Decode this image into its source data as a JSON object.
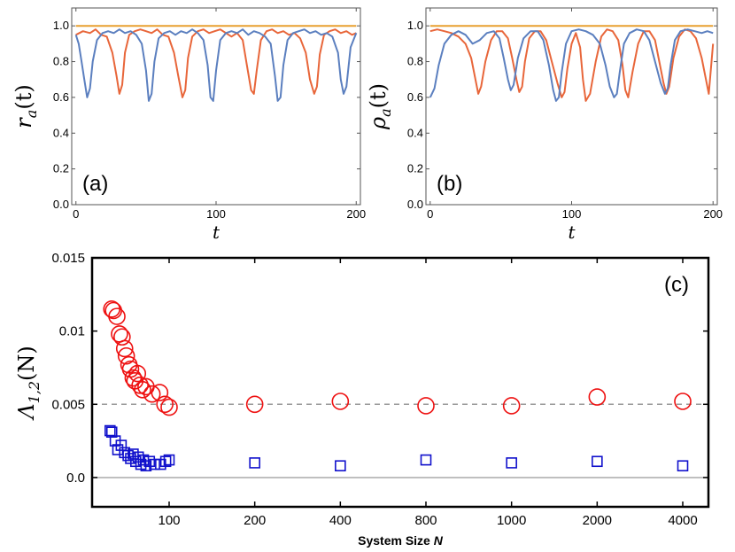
{
  "chart_data": [
    {
      "type": "line",
      "panel_label": "(a)",
      "xlabel": "t",
      "ylabel": "r_a(t)",
      "ylabel_main": "r",
      "ylabel_sub": "a",
      "ylabel_arg": "(t)",
      "xlim": [
        -3,
        203
      ],
      "ylim": [
        0,
        1.1
      ],
      "xticks": [
        "0",
        "100",
        "200"
      ],
      "xtick_values": [
        0,
        100,
        200
      ],
      "yticks": [
        "0.0",
        "0.2",
        "0.4",
        "0.6",
        "0.8",
        "1.0"
      ],
      "ytick_values": [
        0,
        0.2,
        0.4,
        0.6,
        0.8,
        1.0
      ],
      "series": [
        {
          "name": "constant",
          "color": "#e8a030",
          "x": [
            0,
            200
          ],
          "values": [
            1.0,
            1.0
          ]
        },
        {
          "name": "orange",
          "color": "#e8663a",
          "x": [
            0,
            5,
            10,
            14,
            18,
            22,
            26,
            29,
            31,
            33,
            35,
            38,
            42,
            46,
            50,
            54,
            58,
            62,
            66,
            70,
            73,
            76,
            78,
            80,
            83,
            87,
            91,
            95,
            99,
            103,
            107,
            111,
            115,
            119,
            122,
            125,
            127,
            129,
            132,
            136,
            140,
            144,
            148,
            152,
            156,
            160,
            164,
            167,
            170,
            172,
            174,
            177,
            181,
            185,
            189,
            193,
            197,
            200
          ],
          "values": [
            0.95,
            0.97,
            0.96,
            0.98,
            0.95,
            0.94,
            0.85,
            0.72,
            0.62,
            0.67,
            0.85,
            0.95,
            0.97,
            0.98,
            0.97,
            0.96,
            0.98,
            0.95,
            0.94,
            0.85,
            0.72,
            0.6,
            0.64,
            0.82,
            0.94,
            0.97,
            0.98,
            0.96,
            0.97,
            0.98,
            0.96,
            0.94,
            0.96,
            0.92,
            0.78,
            0.64,
            0.62,
            0.75,
            0.92,
            0.97,
            0.98,
            0.96,
            0.97,
            0.95,
            0.96,
            0.93,
            0.85,
            0.7,
            0.62,
            0.66,
            0.84,
            0.95,
            0.97,
            0.98,
            0.96,
            0.97,
            0.95,
            0.96
          ]
        },
        {
          "name": "blue",
          "color": "#5b7fbf",
          "x": [
            0,
            2,
            4,
            6,
            8,
            10,
            12,
            15,
            19,
            23,
            27,
            31,
            35,
            39,
            43,
            47,
            50,
            52,
            54,
            56,
            59,
            63,
            67,
            71,
            75,
            79,
            83,
            87,
            91,
            94,
            96,
            98,
            100,
            103,
            107,
            111,
            115,
            119,
            123,
            127,
            131,
            135,
            139,
            142,
            144,
            146,
            148,
            151,
            155,
            159,
            163,
            167,
            171,
            175,
            179,
            183,
            187,
            189,
            191,
            193,
            196,
            200
          ],
          "values": [
            0.95,
            0.9,
            0.8,
            0.7,
            0.6,
            0.65,
            0.8,
            0.92,
            0.96,
            0.97,
            0.96,
            0.98,
            0.96,
            0.97,
            0.95,
            0.9,
            0.75,
            0.58,
            0.62,
            0.8,
            0.93,
            0.96,
            0.97,
            0.95,
            0.97,
            0.96,
            0.98,
            0.96,
            0.92,
            0.78,
            0.6,
            0.58,
            0.75,
            0.92,
            0.96,
            0.97,
            0.96,
            0.98,
            0.95,
            0.97,
            0.96,
            0.94,
            0.9,
            0.72,
            0.58,
            0.6,
            0.78,
            0.92,
            0.96,
            0.97,
            0.98,
            0.96,
            0.97,
            0.95,
            0.96,
            0.94,
            0.85,
            0.7,
            0.62,
            0.66,
            0.88,
            0.96
          ]
        }
      ]
    },
    {
      "type": "line",
      "panel_label": "(b)",
      "xlabel": "t",
      "ylabel": "ρ_a(t)",
      "ylabel_main": "ρ",
      "ylabel_sub": "a",
      "ylabel_arg": "(t)",
      "xlim": [
        -3,
        203
      ],
      "ylim": [
        0,
        1.1
      ],
      "xticks": [
        "0",
        "100",
        "200"
      ],
      "xtick_values": [
        0,
        100,
        200
      ],
      "yticks": [
        "0.0",
        "0.2",
        "0.4",
        "0.6",
        "0.8",
        "1.0"
      ],
      "ytick_values": [
        0,
        0.2,
        0.4,
        0.6,
        0.8,
        1.0
      ],
      "series": [
        {
          "name": "constant",
          "color": "#e8a030",
          "x": [
            0,
            200
          ],
          "values": [
            1.0,
            1.0
          ]
        },
        {
          "name": "orange",
          "color": "#e8663a",
          "x": [
            0,
            5,
            10,
            15,
            20,
            25,
            29,
            32,
            34,
            36,
            39,
            43,
            47,
            51,
            55,
            58,
            61,
            63,
            65,
            67,
            70,
            74,
            78,
            82,
            86,
            90,
            93,
            95,
            97,
            100,
            103,
            106,
            108,
            110,
            113,
            117,
            121,
            125,
            129,
            133,
            136,
            138,
            140,
            143,
            147,
            151,
            155,
            159,
            162,
            165,
            167,
            169,
            172,
            176,
            180,
            184,
            188,
            192,
            195,
            197,
            200
          ],
          "values": [
            0.97,
            0.98,
            0.97,
            0.96,
            0.94,
            0.9,
            0.82,
            0.7,
            0.62,
            0.66,
            0.8,
            0.92,
            0.97,
            0.97,
            0.93,
            0.82,
            0.7,
            0.63,
            0.66,
            0.8,
            0.93,
            0.97,
            0.97,
            0.92,
            0.8,
            0.68,
            0.6,
            0.63,
            0.76,
            0.9,
            0.96,
            0.88,
            0.7,
            0.58,
            0.62,
            0.8,
            0.94,
            0.98,
            0.97,
            0.92,
            0.78,
            0.64,
            0.6,
            0.74,
            0.9,
            0.97,
            0.97,
            0.92,
            0.8,
            0.68,
            0.62,
            0.66,
            0.82,
            0.94,
            0.98,
            0.97,
            0.93,
            0.82,
            0.7,
            0.62,
            0.9
          ]
        },
        {
          "name": "blue",
          "color": "#5b7fbf",
          "x": [
            0,
            3,
            6,
            10,
            15,
            20,
            25,
            30,
            35,
            40,
            45,
            49,
            52,
            55,
            57,
            59,
            62,
            66,
            71,
            76,
            80,
            84,
            87,
            89,
            91,
            93,
            96,
            100,
            105,
            110,
            115,
            120,
            124,
            127,
            130,
            132,
            134,
            137,
            141,
            146,
            151,
            155,
            159,
            163,
            166,
            168,
            170,
            173,
            177,
            182,
            187,
            192,
            196,
            200
          ],
          "values": [
            0.6,
            0.65,
            0.78,
            0.9,
            0.95,
            0.97,
            0.95,
            0.9,
            0.92,
            0.96,
            0.97,
            0.93,
            0.82,
            0.7,
            0.64,
            0.67,
            0.82,
            0.93,
            0.97,
            0.97,
            0.92,
            0.78,
            0.64,
            0.58,
            0.6,
            0.74,
            0.9,
            0.97,
            0.98,
            0.97,
            0.95,
            0.9,
            0.78,
            0.66,
            0.6,
            0.62,
            0.74,
            0.9,
            0.96,
            0.98,
            0.97,
            0.92,
            0.8,
            0.68,
            0.62,
            0.65,
            0.78,
            0.92,
            0.97,
            0.98,
            0.97,
            0.96,
            0.97,
            0.96
          ]
        }
      ]
    },
    {
      "type": "scatter",
      "panel_label": "(c)",
      "xlabel": "System Size N",
      "xlabel_main": "System Size",
      "xlabel_var": "N",
      "ylabel": "Λ_1,2(N)",
      "ylabel_main": "Λ",
      "ylabel_sub": "1,2",
      "ylabel_arg": "(N)",
      "ylim": [
        -0.002,
        0.015
      ],
      "yticks": [
        "0.0",
        "0.005",
        "0.01",
        "0.015"
      ],
      "ytick_values": [
        0,
        0.005,
        0.01,
        0.015
      ],
      "xticks": [
        "100",
        "200",
        "400",
        "800",
        "1000",
        "2000",
        "4000"
      ],
      "x_categorical_positions": [
        0,
        1,
        2,
        3,
        4,
        5,
        6
      ],
      "xlim": [
        -0.9,
        6.3
      ],
      "reference_lines": [
        {
          "name": "dashed",
          "value": 0.005,
          "color": "#999999"
        },
        {
          "name": "zero",
          "value": 0.0,
          "color": "#aaaaaa"
        }
      ],
      "series": [
        {
          "name": "Lambda_1",
          "marker": "circle",
          "color": "#ee1111",
          "x": [
            -0.67,
            -0.65,
            -0.61,
            -0.58,
            -0.55,
            -0.52,
            -0.5,
            -0.47,
            -0.45,
            -0.42,
            -0.4,
            -0.37,
            -0.34,
            -0.31,
            -0.27,
            -0.2,
            -0.11,
            -0.05,
            0,
            1,
            2,
            3,
            4,
            5,
            6
          ],
          "values": [
            0.0115,
            0.0114,
            0.011,
            0.0098,
            0.0096,
            0.0088,
            0.0083,
            0.0077,
            0.0074,
            0.0068,
            0.0066,
            0.0071,
            0.0063,
            0.006,
            0.0062,
            0.0057,
            0.0058,
            0.005,
            0.0048,
            0.005,
            0.0052,
            0.0049,
            0.0049,
            0.0055,
            0.0052
          ]
        },
        {
          "name": "Lambda_2",
          "marker": "square",
          "color": "#1111cc",
          "x": [
            -0.69,
            -0.67,
            -0.63,
            -0.6,
            -0.56,
            -0.52,
            -0.48,
            -0.45,
            -0.42,
            -0.39,
            -0.36,
            -0.33,
            -0.3,
            -0.27,
            -0.23,
            -0.17,
            -0.1,
            -0.04,
            0,
            1,
            2,
            3,
            4,
            5,
            6
          ],
          "values": [
            0.0032,
            0.0031,
            0.0025,
            0.0019,
            0.0022,
            0.0017,
            0.0015,
            0.0013,
            0.0016,
            0.0011,
            0.0014,
            0.0009,
            0.0012,
            0.0008,
            0.0011,
            0.0009,
            0.0009,
            0.0011,
            0.0012,
            0.001,
            0.0008,
            0.0012,
            0.001,
            0.0011,
            0.0008
          ]
        }
      ]
    }
  ]
}
